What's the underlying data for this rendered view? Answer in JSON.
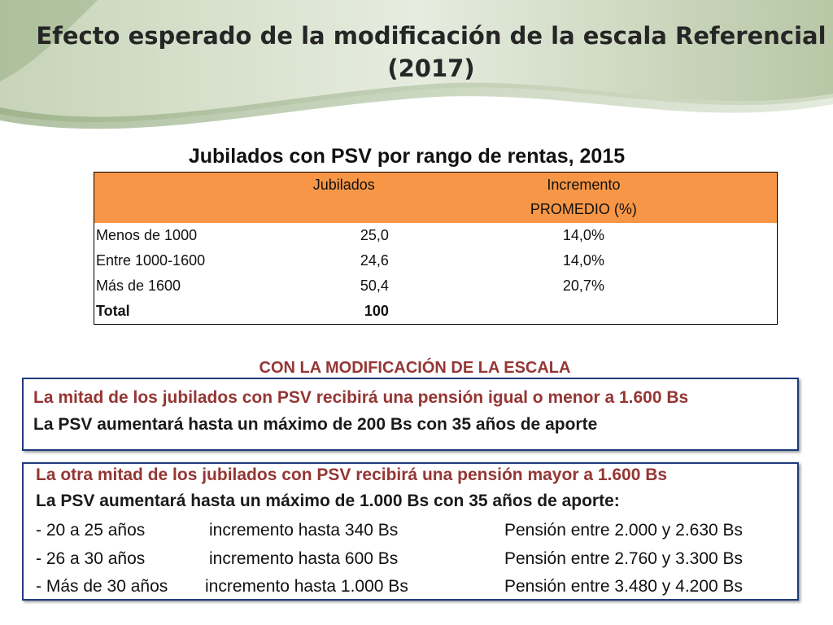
{
  "title": "Efecto esperado de la modificación de la escala Referencial (2017)",
  "table": {
    "caption": "Jubilados con PSV por rango de rentas, 2015",
    "headers": [
      "",
      "Jubilados",
      "Incremento PROMEDIO (%)"
    ],
    "header_line1": "Incremento",
    "header_line2": "PROMEDIO (%)",
    "rows": [
      {
        "rango": "Menos de 1000",
        "jubilados": "25,0",
        "incremento": "14,0%"
      },
      {
        "rango": "Entre 1000-1600",
        "jubilados": "24,6",
        "incremento": "14,0%"
      },
      {
        "rango": "Más de 1600",
        "jubilados": "50,4",
        "incremento": "20,7%"
      }
    ],
    "total_label": "Total",
    "total_value": "100"
  },
  "section_title": "CON LA MODIFICACIÓN DE LA ESCALA",
  "box1": {
    "line1": "La mitad de los jubilados con PSV recibirá una pensión igual o menor a 1.600 Bs",
    "line2": "La PSV aumentará hasta un máximo de 200 Bs con 35 años de aporte"
  },
  "box2": {
    "line1": "La otra mitad de los jubilados con PSV recibirá una pensión mayor a 1.600 Bs",
    "line2": "La PSV aumentará hasta un máximo de 1.000 Bs con 35 años de aporte:",
    "rows": [
      {
        "years": "- 20 a 25 años",
        "increase": "incremento hasta 340 Bs",
        "pension": "Pensión entre 2.000 y 2.630 Bs"
      },
      {
        "years": "- 26 a 30 años",
        "increase": "incremento hasta 600 Bs",
        "pension": "Pensión entre 2.760 y 3.300 Bs"
      },
      {
        "years": "- Más de 30 años",
        "increase": "incremento hasta 1.000 Bs",
        "pension": "Pensión entre 3.480 y 4.200 Bs"
      }
    ]
  }
}
